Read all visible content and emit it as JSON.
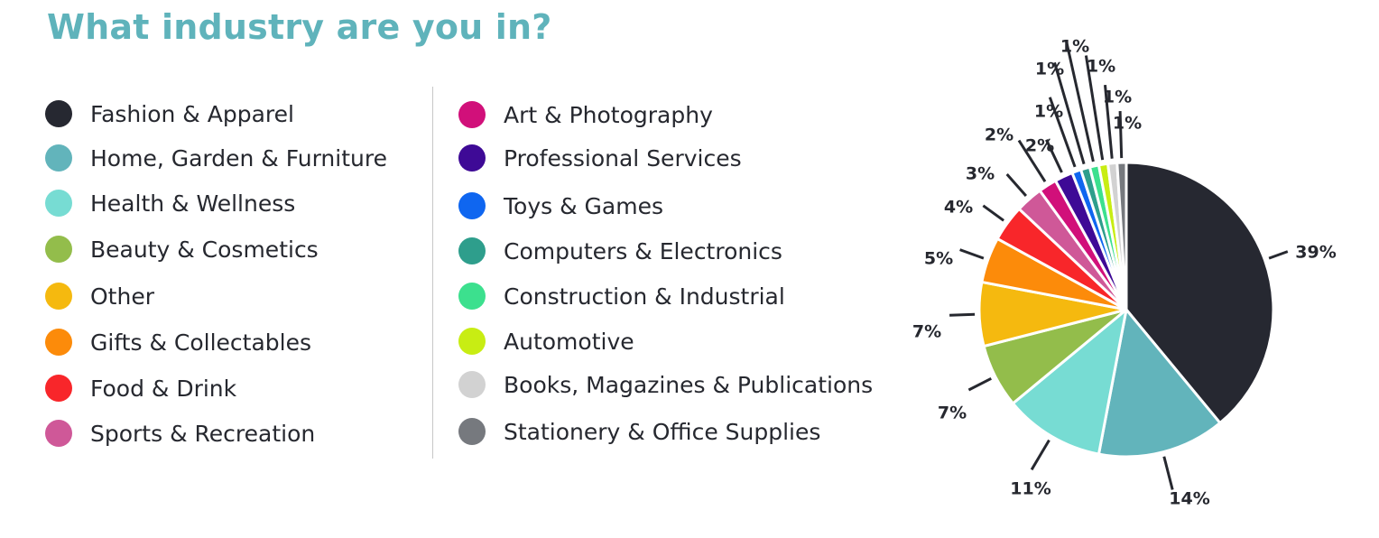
{
  "chart_data": {
    "type": "pie",
    "title": "What industry are you in?",
    "series": [
      {
        "name": "Fashion & Apparel",
        "value": 39,
        "label": "39%",
        "color": "#262831"
      },
      {
        "name": "Home, Garden & Furniture",
        "value": 14,
        "label": "14%",
        "color": "#62b4bb"
      },
      {
        "name": "Health & Wellness",
        "value": 11,
        "label": "11%",
        "color": "#77dcd3"
      },
      {
        "name": "Beauty & Cosmetics",
        "value": 7,
        "label": "7%",
        "color": "#93bd4b"
      },
      {
        "name": "Other",
        "value": 7,
        "label": "7%",
        "color": "#f5b90f"
      },
      {
        "name": "Gifts & Collectables",
        "value": 5,
        "label": "5%",
        "color": "#fc8b0a"
      },
      {
        "name": "Food & Drink",
        "value": 4,
        "label": "4%",
        "color": "#f8262a"
      },
      {
        "name": "Sports & Recreation",
        "value": 3,
        "label": "3%",
        "color": "#cf5898"
      },
      {
        "name": "Art & Photography",
        "value": 2,
        "label": "2%",
        "color": "#d1107a"
      },
      {
        "name": "Professional Services",
        "value": 2,
        "label": "2%",
        "color": "#3e0a96"
      },
      {
        "name": "Toys & Games",
        "value": 1,
        "label": "1%",
        "color": "#0f66f0"
      },
      {
        "name": "Computers & Electronics",
        "value": 1,
        "label": "1%",
        "color": "#2e9e8c"
      },
      {
        "name": "Construction & Industrial",
        "value": 1,
        "label": "1%",
        "color": "#3ce08e"
      },
      {
        "name": "Automotive",
        "value": 1,
        "label": "1%",
        "color": "#c8ed13"
      },
      {
        "name": "Books, Magazines & Publications",
        "value": 1,
        "label": "1%",
        "color": "#d2d2d2"
      },
      {
        "name": "Stationery & Office Supplies",
        "value": 1,
        "label": "1%",
        "color": "#76797e"
      }
    ],
    "legend_placement": "left"
  }
}
